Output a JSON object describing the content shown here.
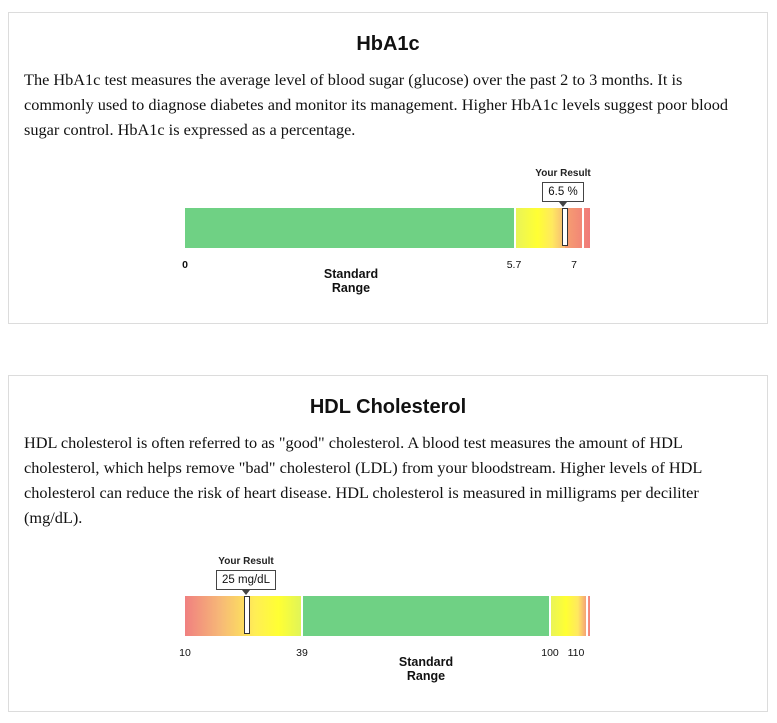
{
  "cards": [
    {
      "title": "HbA1c",
      "description": "The HbA1c test measures the average level of blood sugar (glucose) over the past 2 to 3 months. It is commonly used to diagnose diabetes and monitor its management. Higher HbA1c levels suggest poor blood sugar control. HbA1c is expressed as a percentage.",
      "result_caption": "Your Result",
      "result_value": "6.5 %",
      "standard_range_label_line1": "Standard",
      "standard_range_label_line2": "Range",
      "ticks": [
        "0",
        "5.7",
        "7"
      ],
      "scale": {
        "min": 0,
        "max": 7.3,
        "result": 6.5,
        "range_label_center": 2.9
      },
      "colors": {
        "normal": "#6fd184",
        "warn": "#ffff33",
        "high": "#f08080"
      }
    },
    {
      "title": "HDL Cholesterol",
      "description": "HDL cholesterol is often referred to as \"good\" cholesterol. A blood test measures the amount of HDL cholesterol, which helps remove \"bad\" cholesterol (LDL) from your bloodstream. Higher levels of HDL cholesterol can reduce the risk of heart disease. HDL cholesterol is measured in milligrams per deciliter (mg/dL).",
      "result_caption": "Your Result",
      "result_value": "25 mg/dL",
      "standard_range_label_line1": "Standard",
      "standard_range_label_line2": "Range",
      "ticks": [
        "10",
        "39",
        "100",
        "110"
      ],
      "scale": {
        "min": 10,
        "max": 114,
        "result": 25
      },
      "colors": {
        "normal": "#6fd184",
        "warn": "#ffff33",
        "low": "#f08080"
      }
    }
  ]
}
